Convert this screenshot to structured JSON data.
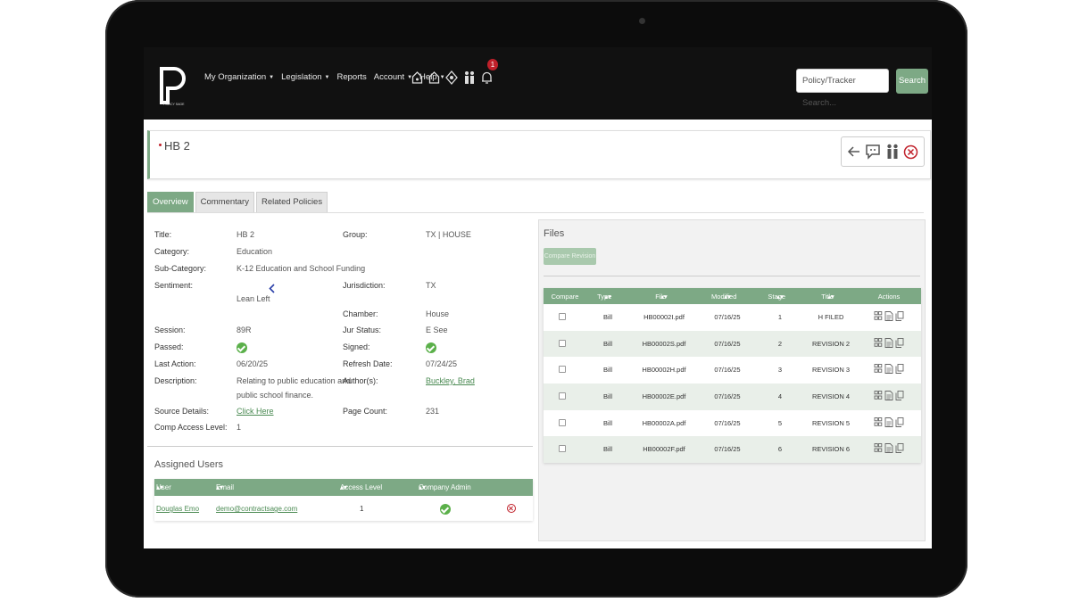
{
  "nav": {
    "logo_text": "POLICY SAGE",
    "items": [
      "My Organization",
      "Legislation",
      "Reports",
      "Account",
      "Help"
    ],
    "dropdown_flags": [
      true,
      true,
      false,
      true,
      true
    ],
    "notification_count": "1",
    "search_placeholder": "Policy/Tracker Search...",
    "search_button": "Search"
  },
  "header": {
    "title": "HB 2"
  },
  "tabs": [
    "Overview",
    "Commentary",
    "Related Policies"
  ],
  "overview": {
    "title_label": "Title:",
    "title_value": "HB 2",
    "category_label": "Category:",
    "category_value": "Education",
    "subcategory_label": "Sub-Category:",
    "subcategory_value": "K-12 Education and School Funding",
    "sentiment_label": "Sentiment:",
    "sentiment_value": "Lean Left",
    "session_label": "Session:",
    "session_value": "89R",
    "passed_label": "Passed:",
    "last_action_label": "Last Action:",
    "last_action_value": "06/20/25",
    "description_label": "Description:",
    "description_line1": "Relating to public education and",
    "description_line2": "public school finance.",
    "source_label": "Source Details:",
    "source_value": "Click Here",
    "comp_label": "Comp Access Level:",
    "comp_value": "1",
    "group_label": "Group:",
    "group_value": "TX | HOUSE",
    "jurisdiction_label": "Jurisdiction:",
    "jurisdiction_value": "TX",
    "chamber_label": "Chamber:",
    "chamber_value": "House",
    "jur_status_label": "Jur Status:",
    "jur_status_value": "E See",
    "signed_label": "Signed:",
    "refresh_label": "Refresh Date:",
    "refresh_value": "07/24/25",
    "author_label": "Author(s):",
    "author_value": "Buckley, Brad",
    "page_count_label": "Page Count:",
    "page_count_value": "231"
  },
  "assigned_users": {
    "title": "Assigned Users",
    "columns": [
      "User",
      "Email",
      "Access Level",
      "Company Admin"
    ],
    "rows": [
      {
        "user": "Douglas Emo",
        "email": "demo@contractsage.com",
        "access_level": "1"
      }
    ]
  },
  "files": {
    "title": "Files",
    "compare_button": "Compare Revision",
    "columns": [
      "Compare",
      "Type",
      "File",
      "Modified",
      "Stage",
      "Title",
      "Actions"
    ],
    "rows": [
      {
        "type": "Bill",
        "file": "HB00002I.pdf",
        "modified": "07/16/25",
        "stage": "1",
        "title": "H FILED"
      },
      {
        "type": "Bill",
        "file": "HB00002S.pdf",
        "modified": "07/16/25",
        "stage": "2",
        "title": "REVISION 2"
      },
      {
        "type": "Bill",
        "file": "HB00002H.pdf",
        "modified": "07/16/25",
        "stage": "3",
        "title": "REVISION 3"
      },
      {
        "type": "Bill",
        "file": "HB00002E.pdf",
        "modified": "07/16/25",
        "stage": "4",
        "title": "REVISION 4"
      },
      {
        "type": "Bill",
        "file": "HB00002A.pdf",
        "modified": "07/16/25",
        "stage": "5",
        "title": "REVISION 5"
      },
      {
        "type": "Bill",
        "file": "HB00002F.pdf",
        "modified": "07/16/25",
        "stage": "6",
        "title": "REVISION 6"
      }
    ]
  },
  "colors": {
    "accent": "#7da985",
    "navbar": "#111111",
    "alert": "#c0202a",
    "check": "#5bb04a"
  }
}
